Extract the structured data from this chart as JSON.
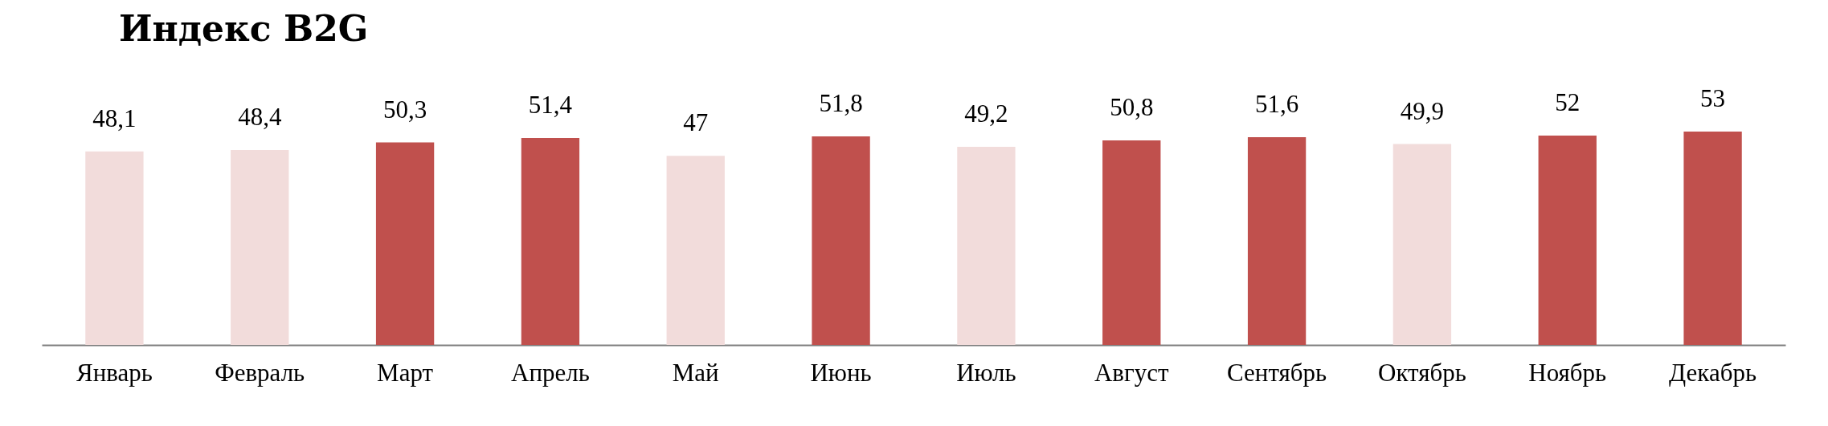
{
  "chart_data": {
    "type": "bar",
    "title": "Индекс B2G",
    "categories": [
      "Январь",
      "Февраль",
      "Март",
      "Апрель",
      "Май",
      "Июнь",
      "Июль",
      "Август",
      "Сентябрь",
      "Октябрь",
      "Ноябрь",
      "Декабрь"
    ],
    "values": [
      48.1,
      48.4,
      50.3,
      51.4,
      47,
      51.8,
      49.2,
      50.8,
      51.6,
      49.9,
      52,
      53
    ],
    "value_labels": [
      "48,1",
      "48,4",
      "50,3",
      "51,4",
      "47",
      "51,8",
      "49,2",
      "50,8",
      "51,6",
      "49,9",
      "52",
      "53"
    ],
    "colors": [
      "#f2dcdb",
      "#f2dcdb",
      "#c0504d",
      "#c0504d",
      "#f2dcdb",
      "#c0504d",
      "#f2dcdb",
      "#c0504d",
      "#c0504d",
      "#f2dcdb",
      "#c0504d",
      "#c0504d"
    ],
    "tick_labels": "x"
  }
}
